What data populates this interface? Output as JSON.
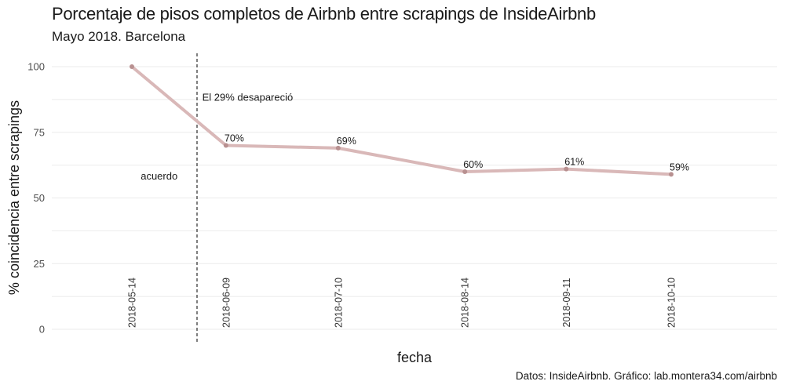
{
  "chart_data": {
    "type": "line",
    "title": "Porcentaje de pisos completos de Airbnb entre scrapings de InsideAirbnb",
    "subtitle": "Mayo 2018. Barcelona",
    "caption": "Datos: InsideAirbnb. Gráfico: lab.montera34.com/airbnb",
    "xlabel": "fecha",
    "ylabel": "% coincidencia entre scrapings",
    "x": [
      "2018-05-14",
      "2018-06-09",
      "2018-07-10",
      "2018-08-14",
      "2018-09-11",
      "2018-10-10"
    ],
    "values": [
      100,
      70,
      69,
      60,
      61,
      59
    ],
    "data_labels": [
      "",
      "70%",
      "69%",
      "60%",
      "61%",
      "59%"
    ],
    "ylim": [
      0,
      100
    ],
    "yticks": [
      0,
      25,
      50,
      75,
      100
    ],
    "grid": true,
    "line_color": "#d9b8b8",
    "point_color": "#b89090",
    "vline_date": "2018-06-01",
    "annotations": [
      {
        "text": "El 29% desapareció",
        "x": "2018-06-02",
        "y": 87
      },
      {
        "text": "acuerdo",
        "x": "2018-05-16",
        "y": 57
      }
    ]
  }
}
